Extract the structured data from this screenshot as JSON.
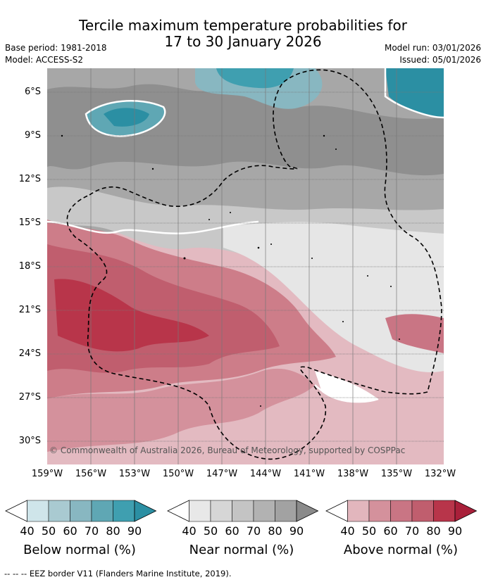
{
  "title": {
    "line1": "Tercile maximum temperature probabilities for",
    "line2": "17 to 30 January 2026"
  },
  "meta": {
    "base_period": "Base period: 1981-2018",
    "model": "Model: ACCESS-S2",
    "model_run": "Model run: 03/01/2026",
    "issued": "Issued: 05/01/2026"
  },
  "map": {
    "latitudes": [
      "6°S",
      "9°S",
      "12°S",
      "15°S",
      "18°S",
      "21°S",
      "24°S",
      "27°S",
      "30°S"
    ],
    "longitudes": [
      "159°W",
      "156°W",
      "153°W",
      "150°W",
      "147°W",
      "144°W",
      "141°W",
      "138°W",
      "135°W",
      "132°W"
    ],
    "copyright": "© Commonwealth of Australia 2026, Bureau of Meteorology, supported by COSPPac"
  },
  "legend": {
    "below": {
      "title": "Below normal (%)",
      "ticks": [
        "40",
        "50",
        "60",
        "70",
        "80",
        "90"
      ],
      "colors": [
        "#ffffff",
        "#cfe5ea",
        "#a9cad1",
        "#88b7c1",
        "#5fa7b4",
        "#3f9fb0",
        "#2b8fa3"
      ]
    },
    "near": {
      "title": "Near normal (%)",
      "ticks": [
        "40",
        "50",
        "60",
        "70",
        "80",
        "90"
      ],
      "colors": [
        "#ffffff",
        "#e8e8e8",
        "#d6d6d6",
        "#c4c4c4",
        "#b2b2b2",
        "#a2a2a2",
        "#8a8a8a"
      ]
    },
    "above": {
      "title": "Above normal (%)",
      "ticks": [
        "40",
        "50",
        "60",
        "70",
        "80",
        "90"
      ],
      "colors": [
        "#ffffff",
        "#e2b6bd",
        "#d4919c",
        "#c97584",
        "#c05e6e",
        "#b8354a",
        "#a9203a"
      ]
    }
  },
  "footer": "--  --  -- EEZ border V11 (Flanders Marine Institute, 2019)."
}
